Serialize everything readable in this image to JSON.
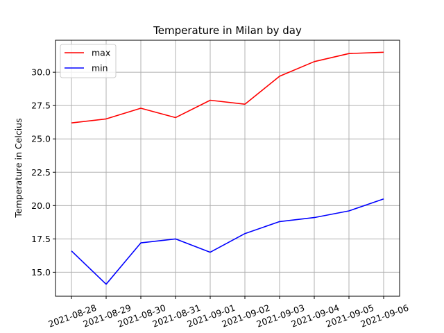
{
  "chart_data": {
    "type": "line",
    "title": "Temperature in Milan by day",
    "xlabel": "",
    "ylabel": "Temperature in Celcius",
    "categories": [
      "2021-08-28",
      "2021-08-29",
      "2021-08-30",
      "2021-08-31",
      "2021-09-01",
      "2021-09-02",
      "2021-09-03",
      "2021-09-04",
      "2021-09-05",
      "2021-09-06"
    ],
    "series": [
      {
        "name": "max",
        "color": "#ff0000",
        "values": [
          26.2,
          26.5,
          27.3,
          26.6,
          27.9,
          27.6,
          29.7,
          30.8,
          31.4,
          31.5
        ]
      },
      {
        "name": "min",
        "color": "#0000ff",
        "values": [
          16.6,
          14.1,
          17.2,
          17.5,
          16.5,
          17.9,
          18.8,
          19.1,
          19.6,
          20.5
        ]
      }
    ],
    "yticks": [
      "15.0",
      "17.5",
      "20.0",
      "22.5",
      "25.0",
      "27.5",
      "30.0"
    ],
    "ylim": [
      13.2,
      32.4
    ],
    "grid": true,
    "legend": "top-left"
  }
}
